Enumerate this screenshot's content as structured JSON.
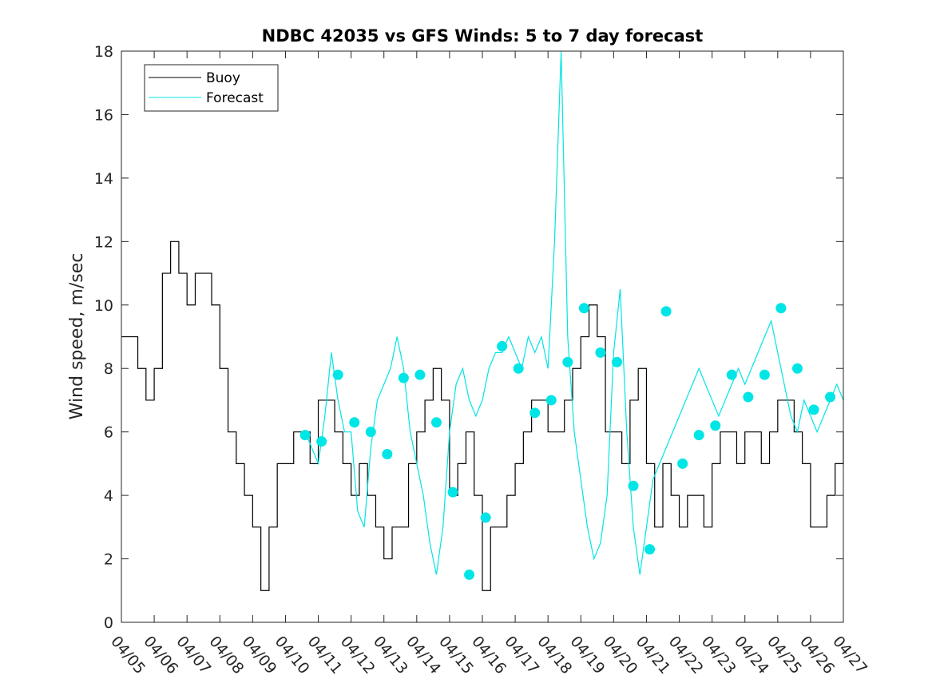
{
  "chart_data": {
    "type": "line",
    "title": "NDBC 42035 vs GFS Winds: 5 to 7 day forecast",
    "xlabel": "",
    "ylabel": "Wind speed, m/sec",
    "ylim": [
      0,
      18
    ],
    "yticks": [
      0,
      2,
      4,
      6,
      8,
      10,
      12,
      14,
      16,
      18
    ],
    "xlim": [
      0,
      22
    ],
    "xticks": [
      "04/05",
      "04/06",
      "04/07",
      "04/08",
      "04/09",
      "04/10",
      "04/11",
      "04/12",
      "04/13",
      "04/14",
      "04/15",
      "04/16",
      "04/17",
      "04/18",
      "04/19",
      "04/20",
      "04/21",
      "04/22",
      "04/23",
      "04/24",
      "04/25",
      "04/26",
      "04/27"
    ],
    "legend_position": "top-left",
    "colors": {
      "buoy": "#000000",
      "forecast": "#00e5e5",
      "marker": "#00e5e5"
    },
    "series": [
      {
        "name": "Buoy",
        "style": "step",
        "x": [
          0.0,
          0.25,
          0.5,
          0.75,
          1.0,
          1.25,
          1.5,
          1.75,
          2.0,
          2.25,
          2.5,
          2.75,
          3.0,
          3.25,
          3.5,
          3.75,
          4.0,
          4.25,
          4.5,
          4.75,
          5.0,
          5.25,
          5.5,
          5.75,
          6.0,
          6.25,
          6.5,
          6.75,
          7.0,
          7.25,
          7.5,
          7.75,
          8.0,
          8.25,
          8.5,
          8.75,
          9.0,
          9.25,
          9.5,
          9.75,
          10.0,
          10.25,
          10.5,
          10.75,
          11.0,
          11.25,
          11.5,
          11.75,
          12.0,
          12.25,
          12.5,
          12.75,
          13.0,
          13.25,
          13.5,
          13.75,
          14.0,
          14.25,
          14.5,
          14.75,
          15.0,
          15.25,
          15.5,
          15.75,
          16.0,
          16.25,
          16.5,
          16.75,
          17.0,
          17.25,
          17.5,
          17.75,
          18.0,
          18.25,
          18.5,
          18.75,
          19.0,
          19.25,
          19.5,
          19.75,
          20.0,
          20.25,
          20.5,
          20.75,
          21.0,
          21.25,
          21.5,
          21.75,
          22.0
        ],
        "y": [
          9,
          9,
          8,
          7,
          8,
          11,
          12,
          11,
          10,
          11,
          11,
          10,
          8,
          6,
          5,
          4,
          3,
          1,
          3,
          5,
          5,
          6,
          6,
          5,
          7,
          7,
          6,
          5,
          4,
          5,
          4,
          3,
          2,
          3,
          3,
          5,
          6,
          7,
          8,
          7,
          4,
          5,
          6,
          4,
          1,
          3,
          3,
          4,
          5,
          6,
          7,
          7,
          6,
          6,
          7,
          8,
          9,
          10,
          9,
          6,
          6,
          5,
          7,
          8,
          5,
          3,
          5,
          4,
          3,
          4,
          4,
          3,
          5,
          6,
          6,
          5,
          6,
          6,
          5,
          6,
          7,
          7,
          6,
          5,
          3,
          3,
          4,
          5,
          6
        ]
      },
      {
        "name": "Forecast",
        "style": "line",
        "x": [
          5.6,
          5.8,
          6.0,
          6.2,
          6.4,
          6.6,
          6.8,
          7.0,
          7.2,
          7.4,
          7.6,
          7.8,
          8.0,
          8.2,
          8.4,
          8.6,
          8.8,
          9.0,
          9.2,
          9.4,
          9.6,
          9.8,
          10.0,
          10.2,
          10.4,
          10.6,
          10.8,
          11.0,
          11.2,
          11.4,
          11.6,
          11.8,
          12.0,
          12.2,
          12.4,
          12.6,
          12.8,
          13.0,
          13.2,
          13.4,
          13.6,
          13.8,
          14.0,
          14.2,
          14.4,
          14.6,
          14.8,
          15.0,
          15.2,
          15.4,
          15.6,
          15.8,
          16.0,
          16.2,
          16.4,
          16.6,
          16.8,
          17.0,
          17.2,
          17.4,
          17.6,
          17.8,
          18.0,
          18.2,
          18.4,
          18.6,
          18.8,
          19.0,
          19.2,
          19.4,
          19.6,
          19.8,
          20.0,
          20.2,
          20.4,
          20.6,
          20.8,
          21.0,
          21.2,
          21.4,
          21.6,
          21.8,
          22.0
        ],
        "y": [
          6.0,
          5.5,
          5.0,
          6.5,
          8.5,
          7.0,
          6.0,
          6.0,
          3.5,
          3.0,
          5.5,
          7.0,
          7.5,
          8.0,
          9.0,
          8.0,
          6.0,
          5.0,
          4.0,
          2.5,
          1.5,
          3.0,
          6.0,
          7.5,
          8.0,
          7.0,
          6.5,
          7.0,
          8.0,
          8.5,
          8.5,
          9.0,
          8.5,
          8.0,
          9.0,
          8.5,
          9.0,
          8.0,
          12.0,
          18.0,
          9.0,
          6.0,
          4.5,
          3.0,
          2.0,
          2.5,
          4.0,
          8.5,
          10.5,
          6.0,
          3.0,
          1.5,
          3.0,
          4.5,
          5.0,
          5.5,
          6.0,
          6.5,
          7.0,
          7.5,
          8.0,
          7.5,
          7.0,
          6.5,
          7.0,
          7.5,
          8.0,
          7.5,
          8.0,
          8.5,
          9.0,
          9.5,
          8.5,
          7.5,
          6.5,
          6.0,
          7.0,
          6.5,
          6.0,
          6.5,
          7.0,
          7.5,
          7.0
        ]
      },
      {
        "name": "",
        "style": "markers",
        "x": [
          5.6,
          6.1,
          6.6,
          7.1,
          7.6,
          8.1,
          8.6,
          9.1,
          9.6,
          10.1,
          10.6,
          11.1,
          11.6,
          12.1,
          12.6,
          13.1,
          13.6,
          14.1,
          14.6,
          15.1,
          15.6,
          16.1,
          16.6,
          17.1,
          17.6,
          18.1,
          18.6,
          19.1,
          19.6,
          20.1,
          20.6,
          21.1,
          21.6
        ],
        "y": [
          5.9,
          5.7,
          7.8,
          6.3,
          6.0,
          5.3,
          7.7,
          7.8,
          6.3,
          4.1,
          1.5,
          3.3,
          8.7,
          8.0,
          6.6,
          7.0,
          8.2,
          9.9,
          8.5,
          8.2,
          4.3,
          2.3,
          9.8,
          5.0,
          5.9,
          6.2,
          7.8,
          7.1,
          7.8,
          9.9,
          8.0,
          6.7,
          7.1
        ]
      }
    ]
  }
}
